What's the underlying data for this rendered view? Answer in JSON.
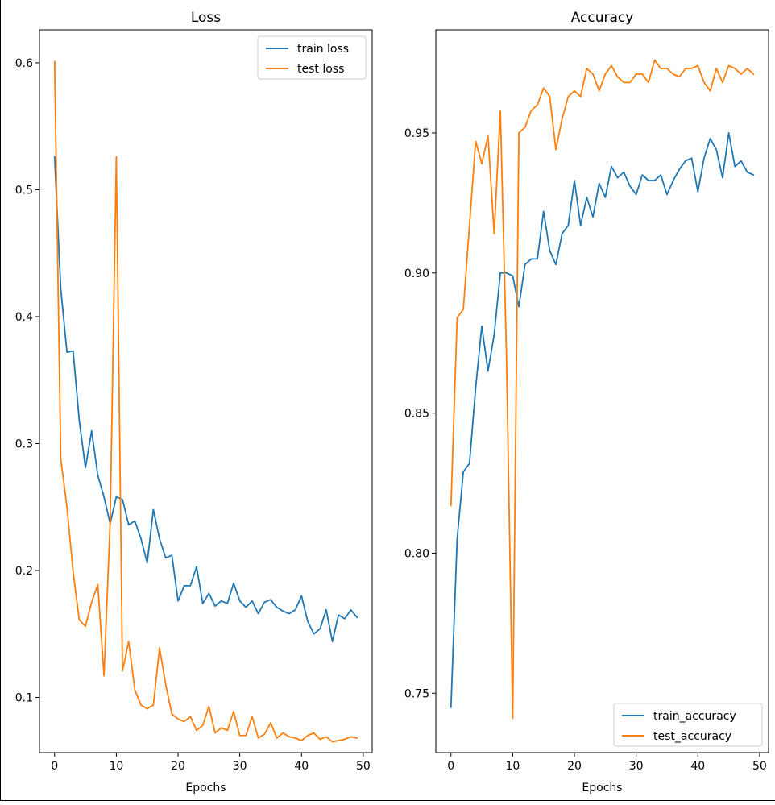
{
  "chart_data": [
    {
      "type": "line",
      "title": "Loss",
      "xlabel": "Epochs",
      "ylabel": "",
      "xlim": [
        -2.45,
        51.45
      ],
      "ylim": [
        0.0565,
        0.626
      ],
      "xticks": [
        0,
        10,
        20,
        30,
        40,
        50
      ],
      "yticks": [
        0.1,
        0.2,
        0.3,
        0.4,
        0.5,
        0.6
      ],
      "ytick_labels": [
        "0.1",
        "0.2",
        "0.3",
        "0.4",
        "0.5",
        "0.6"
      ],
      "legend_position": "top-right",
      "x": [
        0,
        1,
        2,
        3,
        4,
        5,
        6,
        7,
        8,
        9,
        10,
        11,
        12,
        13,
        14,
        15,
        16,
        17,
        18,
        19,
        20,
        21,
        22,
        23,
        24,
        25,
        26,
        27,
        28,
        29,
        30,
        31,
        32,
        33,
        34,
        35,
        36,
        37,
        38,
        39,
        40,
        41,
        42,
        43,
        44,
        45,
        46,
        47,
        48,
        49
      ],
      "series": [
        {
          "name": "train loss",
          "color": "#1f77b4",
          "values": [
            0.526,
            0.422,
            0.372,
            0.373,
            0.318,
            0.281,
            0.31,
            0.275,
            0.258,
            0.237,
            0.258,
            0.256,
            0.236,
            0.239,
            0.225,
            0.206,
            0.248,
            0.225,
            0.21,
            0.212,
            0.176,
            0.188,
            0.188,
            0.203,
            0.174,
            0.182,
            0.172,
            0.176,
            0.174,
            0.19,
            0.176,
            0.171,
            0.176,
            0.166,
            0.175,
            0.177,
            0.171,
            0.168,
            0.166,
            0.169,
            0.18,
            0.16,
            0.15,
            0.154,
            0.169,
            0.144,
            0.165,
            0.162,
            0.169,
            0.163
          ]
        },
        {
          "name": "test loss",
          "color": "#ff7f0e",
          "values": [
            0.601,
            0.288,
            0.25,
            0.199,
            0.161,
            0.156,
            0.175,
            0.189,
            0.117,
            0.238,
            0.526,
            0.121,
            0.144,
            0.106,
            0.094,
            0.091,
            0.094,
            0.139,
            0.11,
            0.087,
            0.083,
            0.081,
            0.085,
            0.074,
            0.078,
            0.093,
            0.072,
            0.076,
            0.074,
            0.089,
            0.07,
            0.07,
            0.085,
            0.068,
            0.071,
            0.08,
            0.068,
            0.072,
            0.069,
            0.068,
            0.066,
            0.07,
            0.072,
            0.067,
            0.069,
            0.065,
            0.066,
            0.067,
            0.069,
            0.068
          ]
        }
      ]
    },
    {
      "type": "line",
      "title": "Accuracy",
      "xlabel": "Epochs",
      "ylabel": "",
      "xlim": [
        -2.45,
        51.45
      ],
      "ylim": [
        0.7288,
        0.9868
      ],
      "xticks": [
        0,
        10,
        20,
        30,
        40,
        50
      ],
      "yticks": [
        0.75,
        0.8,
        0.85,
        0.9,
        0.95
      ],
      "ytick_labels": [
        "0.75",
        "0.80",
        "0.85",
        "0.90",
        "0.95"
      ],
      "legend_position": "bottom-right",
      "x": [
        0,
        1,
        2,
        3,
        4,
        5,
        6,
        7,
        8,
        9,
        10,
        11,
        12,
        13,
        14,
        15,
        16,
        17,
        18,
        19,
        20,
        21,
        22,
        23,
        24,
        25,
        26,
        27,
        28,
        29,
        30,
        31,
        32,
        33,
        34,
        35,
        36,
        37,
        38,
        39,
        40,
        41,
        42,
        43,
        44,
        45,
        46,
        47,
        48,
        49
      ],
      "series": [
        {
          "name": "train_accuracy",
          "color": "#1f77b4",
          "values": [
            0.745,
            0.805,
            0.829,
            0.832,
            0.859,
            0.881,
            0.865,
            0.878,
            0.9,
            0.9,
            0.899,
            0.888,
            0.903,
            0.905,
            0.905,
            0.922,
            0.908,
            0.903,
            0.914,
            0.917,
            0.933,
            0.917,
            0.927,
            0.92,
            0.932,
            0.927,
            0.938,
            0.934,
            0.936,
            0.931,
            0.928,
            0.935,
            0.933,
            0.933,
            0.935,
            0.928,
            0.933,
            0.937,
            0.94,
            0.941,
            0.929,
            0.941,
            0.948,
            0.944,
            0.934,
            0.95,
            0.938,
            0.94,
            0.936,
            0.935
          ]
        },
        {
          "name": "test_accuracy",
          "color": "#ff7f0e",
          "values": [
            0.817,
            0.884,
            0.887,
            0.917,
            0.947,
            0.939,
            0.949,
            0.914,
            0.958,
            0.87,
            0.741,
            0.95,
            0.952,
            0.958,
            0.96,
            0.966,
            0.963,
            0.944,
            0.955,
            0.963,
            0.965,
            0.963,
            0.973,
            0.971,
            0.965,
            0.971,
            0.974,
            0.97,
            0.968,
            0.968,
            0.971,
            0.971,
            0.968,
            0.976,
            0.973,
            0.973,
            0.971,
            0.97,
            0.973,
            0.973,
            0.974,
            0.968,
            0.965,
            0.973,
            0.968,
            0.974,
            0.973,
            0.971,
            0.973,
            0.971
          ]
        }
      ]
    }
  ]
}
